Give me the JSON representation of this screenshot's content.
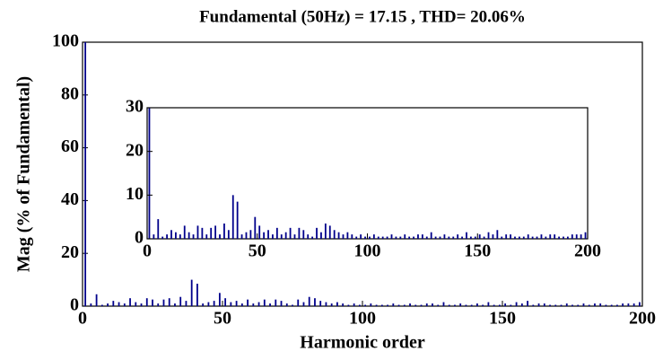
{
  "chart_data": {
    "type": "bar",
    "title": "Fundamental (50Hz) = 17.15 , THD= 20.06%",
    "x_label": "Harmonic order",
    "y_label": "Mag (% of Fundamental)",
    "color": "#00008b",
    "x": [
      1,
      3,
      5,
      7,
      9,
      11,
      13,
      15,
      17,
      19,
      21,
      23,
      25,
      27,
      29,
      31,
      33,
      35,
      37,
      39,
      41,
      43,
      45,
      47,
      49,
      51,
      53,
      55,
      57,
      59,
      61,
      63,
      65,
      67,
      69,
      71,
      73,
      75,
      77,
      79,
      81,
      83,
      85,
      87,
      89,
      91,
      93,
      95,
      97,
      99,
      101,
      103,
      105,
      107,
      109,
      111,
      113,
      115,
      117,
      119,
      121,
      123,
      125,
      127,
      129,
      131,
      133,
      135,
      137,
      139,
      141,
      143,
      145,
      147,
      149,
      151,
      153,
      155,
      157,
      159,
      161,
      163,
      165,
      167,
      169,
      171,
      173,
      175,
      177,
      179,
      181,
      183,
      185,
      187,
      189,
      191,
      193,
      195,
      197,
      199
    ],
    "values": [
      100,
      1,
      4.5,
      0.5,
      1,
      2,
      1.5,
      1,
      3,
      1.5,
      1,
      3,
      2.5,
      1,
      2.5,
      3,
      1,
      3.5,
      2,
      10,
      8.5,
      1,
      1.5,
      2,
      5,
      3,
      1.5,
      2,
      1,
      2.5,
      1,
      1.5,
      2.5,
      1,
      2.5,
      2,
      1,
      0.5,
      2.5,
      1.5,
      3.5,
      3,
      2,
      1.5,
      1,
      1.5,
      1,
      0.5,
      1,
      0.5,
      0.5,
      1,
      0.5,
      0.5,
      0.5,
      1,
      0.5,
      0.5,
      1,
      0.5,
      0.5,
      1,
      1,
      0.5,
      1.5,
      0.5,
      0.5,
      1,
      0.5,
      0.5,
      1,
      0.5,
      1.5,
      0.5,
      0.5,
      1,
      0.5,
      1.5,
      1,
      2,
      0.5,
      1,
      1,
      0.5,
      0.5,
      0.5,
      1,
      0.5,
      0.5,
      1,
      0.5,
      1,
      1,
      0.5,
      0.5,
      0.5,
      1,
      1,
      1,
      1.5
    ],
    "xlim": [
      0,
      200
    ],
    "xticks": [
      0,
      50,
      100,
      150,
      200
    ],
    "ylim": [
      0,
      100
    ],
    "yticks": [
      0,
      20,
      40,
      60,
      80,
      100
    ],
    "inset": {
      "xlim": [
        0,
        200
      ],
      "xticks": [
        0,
        50,
        100,
        150,
        200
      ],
      "ylim": [
        0,
        30
      ],
      "yticks": [
        0,
        10,
        20,
        30
      ]
    }
  }
}
